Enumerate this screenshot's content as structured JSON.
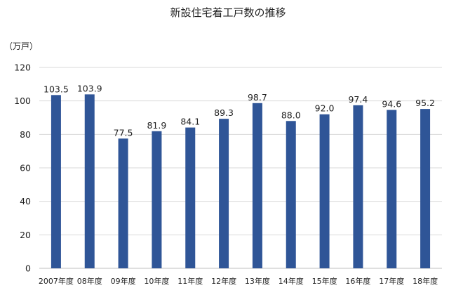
{
  "chart_data": {
    "type": "bar",
    "title": "新設住宅着工戸数の推移",
    "ylabel": "（万戸）",
    "xlabel": "",
    "categories": [
      "2007年度",
      "08年度",
      "09年度",
      "10年度",
      "11年度",
      "12年度",
      "13年度",
      "14年度",
      "15年度",
      "16年度",
      "17年度",
      "18年度"
    ],
    "values": [
      103.5,
      103.9,
      77.5,
      81.9,
      84.1,
      89.3,
      98.7,
      88.0,
      92.0,
      97.4,
      94.6,
      95.2
    ],
    "value_labels": [
      "103.5",
      "103.9",
      "77.5",
      "81.9",
      "84.1",
      "89.3",
      "98.7",
      "88.0",
      "92.0",
      "97.4",
      "94.6",
      "95.2"
    ],
    "ylim": [
      0,
      120
    ],
    "yticks": [
      0,
      20,
      40,
      60,
      80,
      100,
      120
    ],
    "grid": true,
    "legend": "none",
    "colors": {
      "bar": "#2f5597",
      "grid": "#d9d9d9",
      "text": "#222222"
    }
  }
}
